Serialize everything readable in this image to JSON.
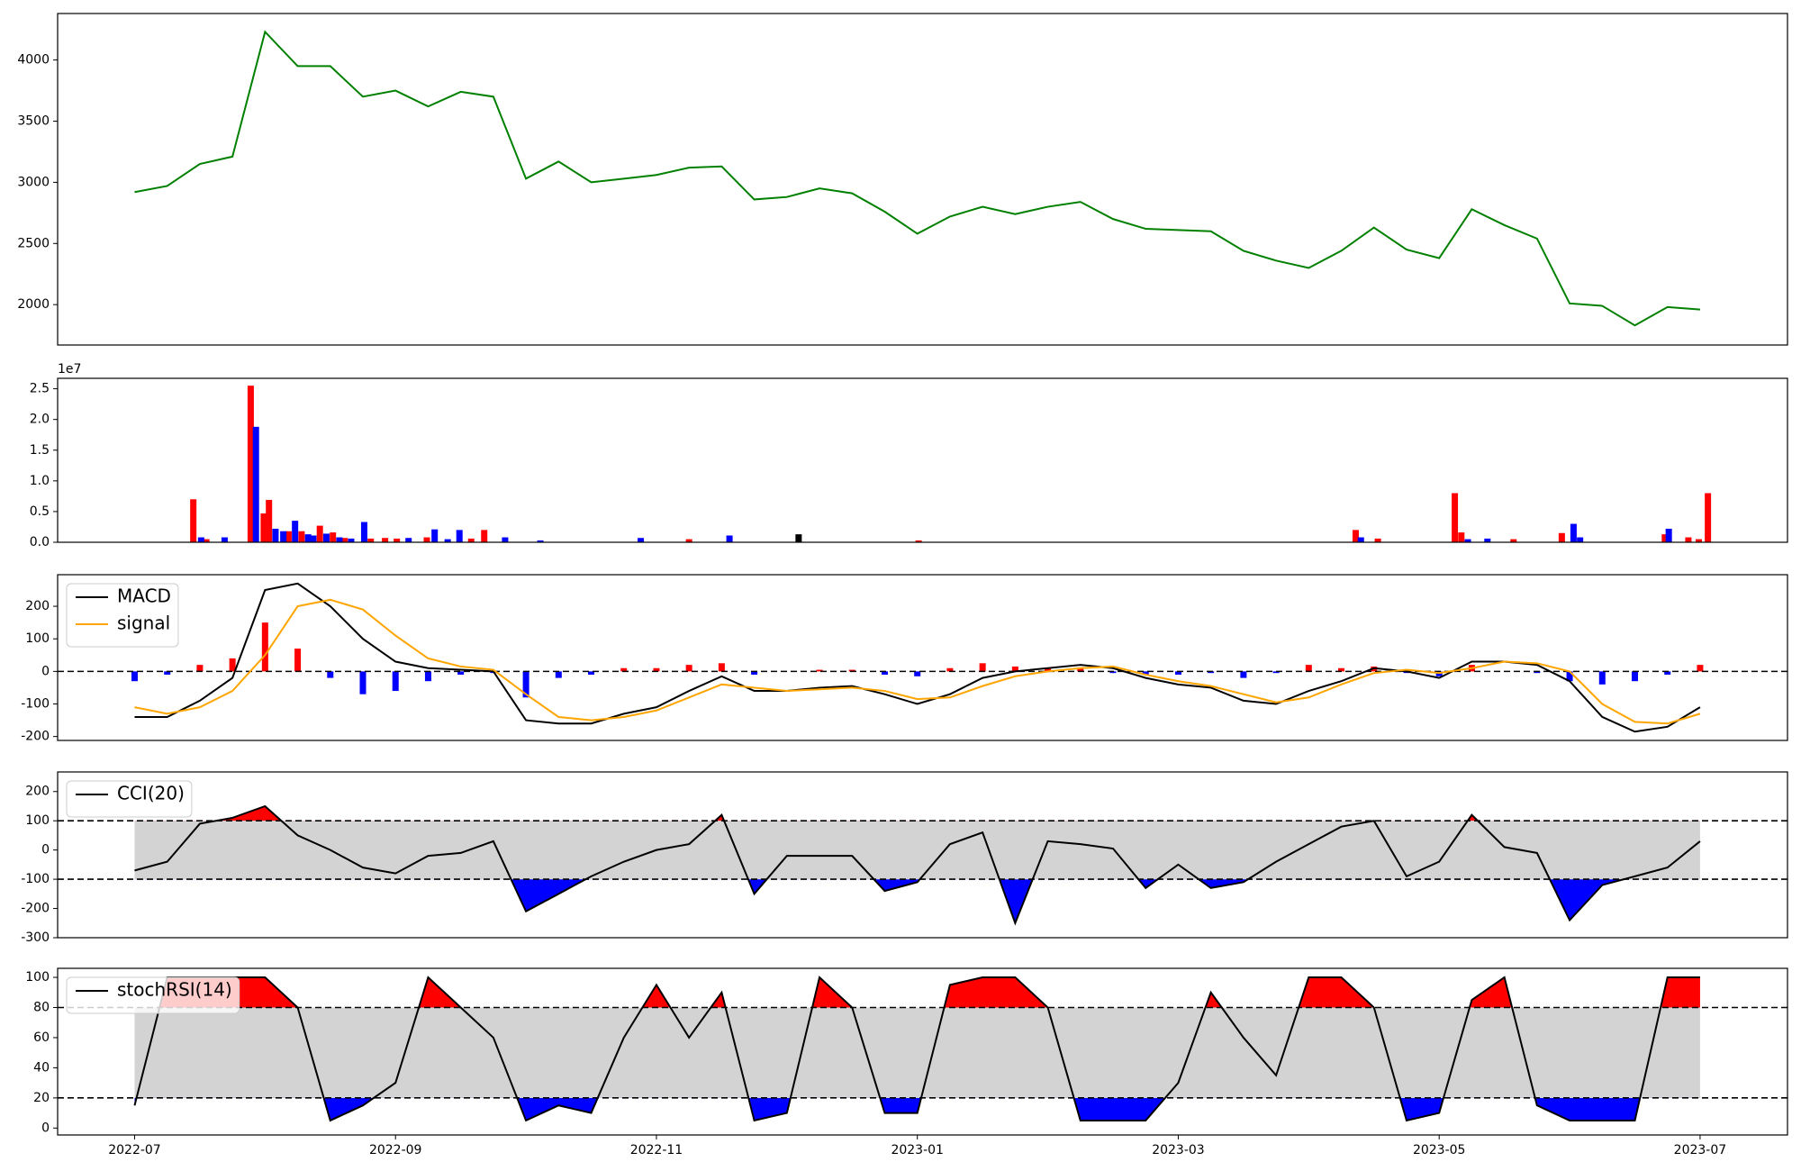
{
  "chart_data": [
    {
      "type": "line",
      "xlim": [
        -0.59,
        12.67
      ],
      "ylim": [
        1670,
        4380
      ],
      "yticks": [
        2000,
        2500,
        3000,
        3500,
        4000
      ],
      "x": [
        0,
        0.25,
        0.5,
        0.75,
        1,
        1.25,
        1.5,
        1.75,
        2,
        2.25,
        2.5,
        2.75,
        3,
        3.25,
        3.5,
        3.75,
        4,
        4.25,
        4.5,
        4.75,
        5,
        5.25,
        5.5,
        5.75,
        6,
        6.25,
        6.5,
        6.75,
        7,
        7.25,
        7.5,
        7.75,
        8,
        8.25,
        8.5,
        8.75,
        9,
        9.25,
        9.5,
        9.75,
        10,
        10.25,
        10.5,
        10.75,
        11,
        11.25,
        11.5,
        11.75,
        12
      ],
      "series": [
        {
          "color": "#008000",
          "values": [
            2920,
            2970,
            3150,
            3210,
            4230,
            3950,
            3950,
            3700,
            3750,
            3620,
            3740,
            3700,
            3030,
            3170,
            3000,
            3030,
            3060,
            3120,
            3130,
            2860,
            2880,
            2950,
            2910,
            2760,
            2580,
            2720,
            2800,
            2740,
            2800,
            2840,
            2700,
            2620,
            2610,
            2600,
            2440,
            2360,
            2300,
            2440,
            2630,
            2450,
            2380,
            2780,
            2650,
            2540,
            2010,
            1990,
            1830,
            1980,
            1960
          ]
        }
      ]
    },
    {
      "type": "bar",
      "xlim": [
        -0.59,
        12.67
      ],
      "ylim": [
        0,
        26700000
      ],
      "offset_label": "1e7",
      "yticks": [
        {
          "value": 0,
          "label": "0.0"
        },
        {
          "value": 5000000,
          "label": "0.5"
        },
        {
          "value": 10000000,
          "label": "1.0"
        },
        {
          "value": 15000000,
          "label": "1.5"
        },
        {
          "value": 20000000,
          "label": "2.0"
        },
        {
          "value": 25000000,
          "label": "2.5"
        }
      ],
      "series": [
        {
          "color": "#ff0000",
          "x": [
            0.45,
            0.55,
            0.89,
            0.99,
            1.03,
            1.18,
            1.28,
            1.42,
            1.52,
            1.61,
            1.81,
            1.92,
            2.01,
            2.24,
            2.58,
            2.68,
            4.25,
            6.01,
            9.36,
            9.53,
            10.12,
            10.17,
            10.57,
            10.94,
            11.73,
            11.91,
            11.99,
            12.06
          ],
          "values": [
            7000000,
            500000,
            25500000,
            4700000,
            6900000,
            1800000,
            1800000,
            2700000,
            1600000,
            700000,
            600000,
            700000,
            600000,
            800000,
            600000,
            2000000,
            500000,
            300000,
            2000000,
            600000,
            8000000,
            1600000,
            500000,
            1500000,
            1300000,
            800000,
            500000,
            8000000
          ]
        },
        {
          "color": "#0000ff",
          "x": [
            0.51,
            0.69,
            0.93,
            1.08,
            1.14,
            1.23,
            1.33,
            1.37,
            1.47,
            1.57,
            1.66,
            1.76,
            2.1,
            2.3,
            2.4,
            2.49,
            2.84,
            3.11,
            3.88,
            4.56,
            9.4,
            10.22,
            10.37,
            11.03,
            11.08,
            11.76
          ],
          "values": [
            800000,
            800000,
            18800000,
            2200000,
            1800000,
            3500000,
            1300000,
            1100000,
            1400000,
            800000,
            600000,
            3300000,
            700000,
            2100000,
            500000,
            2000000,
            800000,
            300000,
            700000,
            1100000,
            800000,
            500000,
            600000,
            3000000,
            800000,
            2200000
          ]
        },
        {
          "color": "#000000",
          "x": [
            5.09
          ],
          "values": [
            1300000
          ]
        }
      ]
    },
    {
      "type": "line",
      "xlim": [
        -0.59,
        12.67
      ],
      "ylim": [
        -212,
        297
      ],
      "yticks": [
        -200,
        -100,
        0,
        100,
        200
      ],
      "hlines": [
        0
      ],
      "legend": "upper left",
      "x": [
        0,
        0.25,
        0.5,
        0.75,
        1,
        1.25,
        1.5,
        1.75,
        2,
        2.25,
        2.5,
        2.75,
        3,
        3.25,
        3.5,
        3.75,
        4,
        4.25,
        4.5,
        4.75,
        5,
        5.25,
        5.5,
        5.75,
        6,
        6.25,
        6.5,
        6.75,
        7,
        7.25,
        7.5,
        7.75,
        8,
        8.25,
        8.5,
        8.75,
        9,
        9.25,
        9.5,
        9.75,
        10,
        10.25,
        10.5,
        10.75,
        11,
        11.25,
        11.5,
        11.75,
        12
      ],
      "series": [
        {
          "kind": "bar",
          "positive_color": "#ff0000",
          "negative_color": "#0000ff",
          "values": [
            -30,
            -10,
            20,
            40,
            150,
            70,
            -20,
            -70,
            -60,
            -30,
            -10,
            -5,
            -80,
            -20,
            -10,
            10,
            10,
            20,
            25,
            -10,
            0,
            5,
            5,
            -10,
            -15,
            10,
            25,
            15,
            10,
            10,
            -5,
            -10,
            -10,
            -5,
            -20,
            -5,
            20,
            10,
            15,
            -5,
            -15,
            20,
            0,
            -5,
            -30,
            -40,
            -30,
            -10,
            20
          ]
        },
        {
          "name": "MACD",
          "color": "#000000",
          "values": [
            -140,
            -140,
            -90,
            -20,
            250,
            270,
            200,
            100,
            30,
            10,
            5,
            0,
            -150,
            -160,
            -160,
            -130,
            -110,
            -60,
            -15,
            -60,
            -60,
            -50,
            -45,
            -70,
            -100,
            -70,
            -20,
            0,
            10,
            20,
            10,
            -20,
            -40,
            -50,
            -90,
            -100,
            -60,
            -30,
            10,
            0,
            -20,
            30,
            30,
            20,
            -30,
            -140,
            -185,
            -170,
            -110
          ]
        },
        {
          "name": "signal",
          "color": "#ffa500",
          "values": [
            -110,
            -130,
            -110,
            -60,
            50,
            200,
            220,
            190,
            110,
            40,
            15,
            5,
            -70,
            -140,
            -150,
            -140,
            -120,
            -80,
            -40,
            -50,
            -60,
            -55,
            -50,
            -60,
            -85,
            -80,
            -45,
            -15,
            0,
            10,
            15,
            -10,
            -30,
            -45,
            -70,
            -95,
            -80,
            -40,
            -5,
            5,
            -5,
            10,
            30,
            25,
            0,
            -100,
            -155,
            -160,
            -130
          ]
        }
      ]
    },
    {
      "type": "line",
      "xlim": [
        -0.59,
        12.67
      ],
      "ylim": [
        -300,
        267
      ],
      "yticks": [
        -300,
        -200,
        -100,
        0,
        100,
        200
      ],
      "legend": "upper left",
      "bands": {
        "lower": -100,
        "upper": 100,
        "color": "#d3d3d3",
        "lower_color": "#0000ff",
        "upper_color": "#ff0000"
      },
      "x": [
        0,
        0.25,
        0.5,
        0.75,
        1,
        1.25,
        1.5,
        1.75,
        2,
        2.25,
        2.5,
        2.75,
        3,
        3.25,
        3.5,
        3.75,
        4,
        4.25,
        4.5,
        4.75,
        5,
        5.25,
        5.5,
        5.75,
        6,
        6.25,
        6.5,
        6.75,
        7,
        7.25,
        7.5,
        7.75,
        8,
        8.25,
        8.5,
        8.75,
        9,
        9.25,
        9.5,
        9.75,
        10,
        10.25,
        10.5,
        10.75,
        11,
        11.25,
        11.5,
        11.75,
        12
      ],
      "series": [
        {
          "name": "CCI(20)",
          "color": "#000000",
          "values": [
            -70,
            -40,
            90,
            110,
            150,
            50,
            0,
            -60,
            -80,
            -20,
            -10,
            30,
            -210,
            -150,
            -90,
            -40,
            0,
            20,
            120,
            -150,
            -20,
            -20,
            -20,
            -140,
            -110,
            20,
            60,
            -250,
            30,
            20,
            5,
            -130,
            -50,
            -130,
            -110,
            -40,
            20,
            80,
            100,
            -90,
            -40,
            120,
            10,
            -10,
            -240,
            -120,
            -90,
            -60,
            30
          ]
        }
      ]
    },
    {
      "type": "line",
      "xlim": [
        -0.59,
        12.67
      ],
      "ylim": [
        -4.6,
        106
      ],
      "yticks": [
        0,
        20,
        40,
        60,
        80,
        100
      ],
      "legend": "upper left",
      "bands": {
        "lower": 20,
        "upper": 80,
        "color": "#d3d3d3",
        "lower_color": "#0000ff",
        "upper_color": "#ff0000"
      },
      "xticks": [
        {
          "value": 0,
          "label": "2022-07"
        },
        {
          "value": 2,
          "label": "2022-09"
        },
        {
          "value": 4,
          "label": "2022-11"
        },
        {
          "value": 6,
          "label": "2023-01"
        },
        {
          "value": 8,
          "label": "2023-03"
        },
        {
          "value": 10,
          "label": "2023-05"
        },
        {
          "value": 12,
          "label": "2023-07"
        }
      ],
      "x": [
        0,
        0.25,
        0.5,
        0.75,
        1,
        1.25,
        1.5,
        1.75,
        2,
        2.25,
        2.5,
        2.75,
        3,
        3.25,
        3.5,
        3.75,
        4,
        4.25,
        4.5,
        4.75,
        5,
        5.25,
        5.5,
        5.75,
        6,
        6.25,
        6.5,
        6.75,
        7,
        7.25,
        7.5,
        7.75,
        8,
        8.25,
        8.5,
        8.75,
        9,
        9.25,
        9.5,
        9.75,
        10,
        10.25,
        10.5,
        10.75,
        11,
        11.25,
        11.5,
        11.75,
        12
      ],
      "series": [
        {
          "name": "stochRSI(14)",
          "color": "#000000",
          "values": [
            15,
            100,
            100,
            100,
            100,
            80,
            5,
            15,
            30,
            100,
            80,
            60,
            5,
            15,
            10,
            60,
            95,
            60,
            90,
            5,
            10,
            100,
            80,
            10,
            10,
            95,
            100,
            100,
            80,
            5,
            5,
            5,
            30,
            90,
            60,
            35,
            100,
            100,
            80,
            5,
            10,
            85,
            100,
            15,
            5,
            5,
            5,
            100,
            100
          ]
        }
      ]
    }
  ]
}
